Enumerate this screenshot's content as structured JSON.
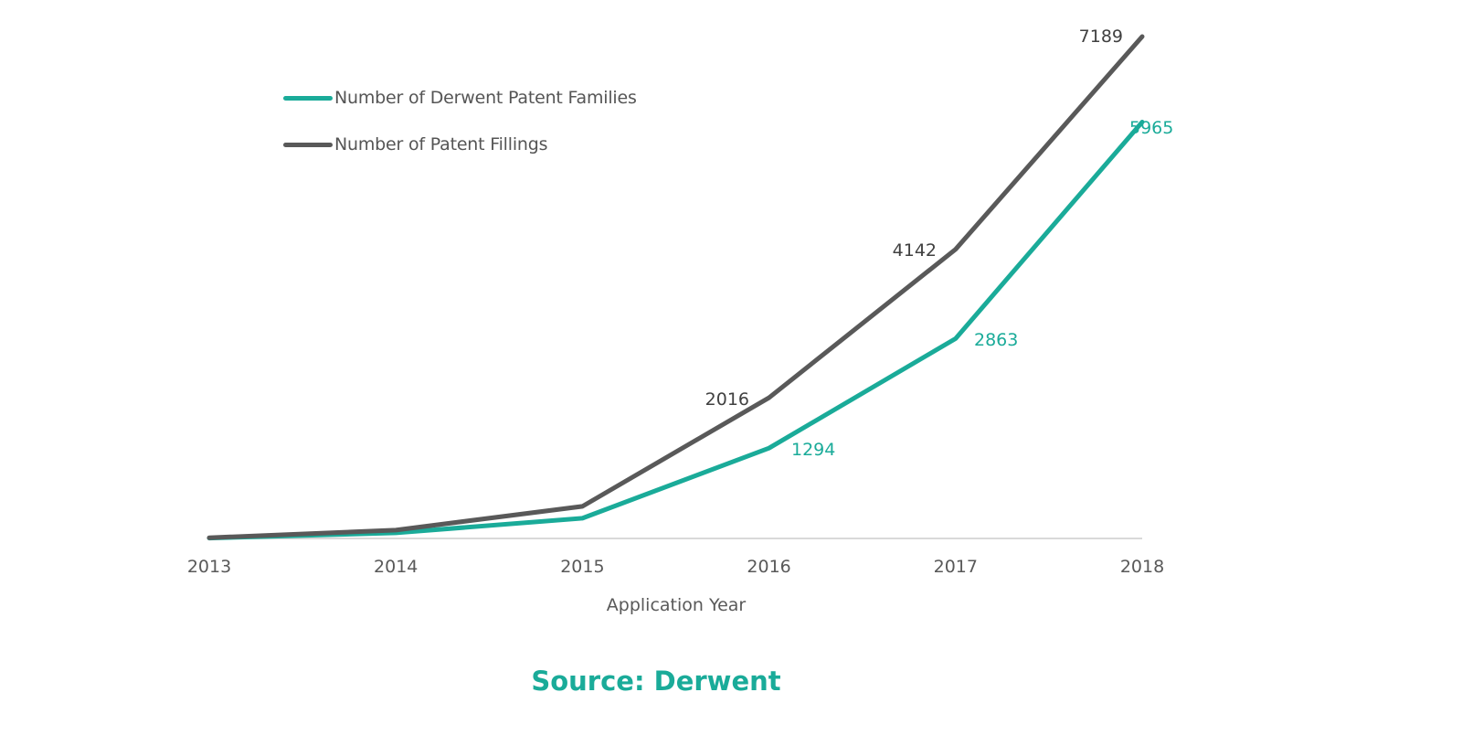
{
  "chart_data": {
    "type": "line",
    "title": "",
    "xlabel": "Application Year",
    "ylabel": "",
    "categories": [
      "2013",
      "2014",
      "2015",
      "2016",
      "2017",
      "2018"
    ],
    "series": [
      {
        "name": "Number of Derwent Patent Families",
        "color": "#1aab99",
        "values": [
          5,
          80,
          290,
          1294,
          2863,
          5965
        ],
        "labels": [
          null,
          null,
          null,
          "1294",
          "2863",
          "5965"
        ]
      },
      {
        "name": "Number of Patent Fillings",
        "color": "#595959",
        "values": [
          10,
          120,
          460,
          2016,
          4142,
          7189
        ],
        "labels": [
          null,
          null,
          null,
          "2016",
          "4142",
          "7189"
        ]
      }
    ],
    "ylim": [
      0,
      7189
    ],
    "grid": false,
    "legend_position": "top-left",
    "axis_color": "#d9d9d9",
    "source": "Source: Derwent"
  },
  "legend": {
    "items": [
      {
        "label": "Number of Derwent Patent Families",
        "color": "#1aab99"
      },
      {
        "label": "Number of Patent Fillings",
        "color": "#595959"
      }
    ]
  },
  "footer": {
    "source_label": "Source: Derwent",
    "color": "#1aab99"
  }
}
